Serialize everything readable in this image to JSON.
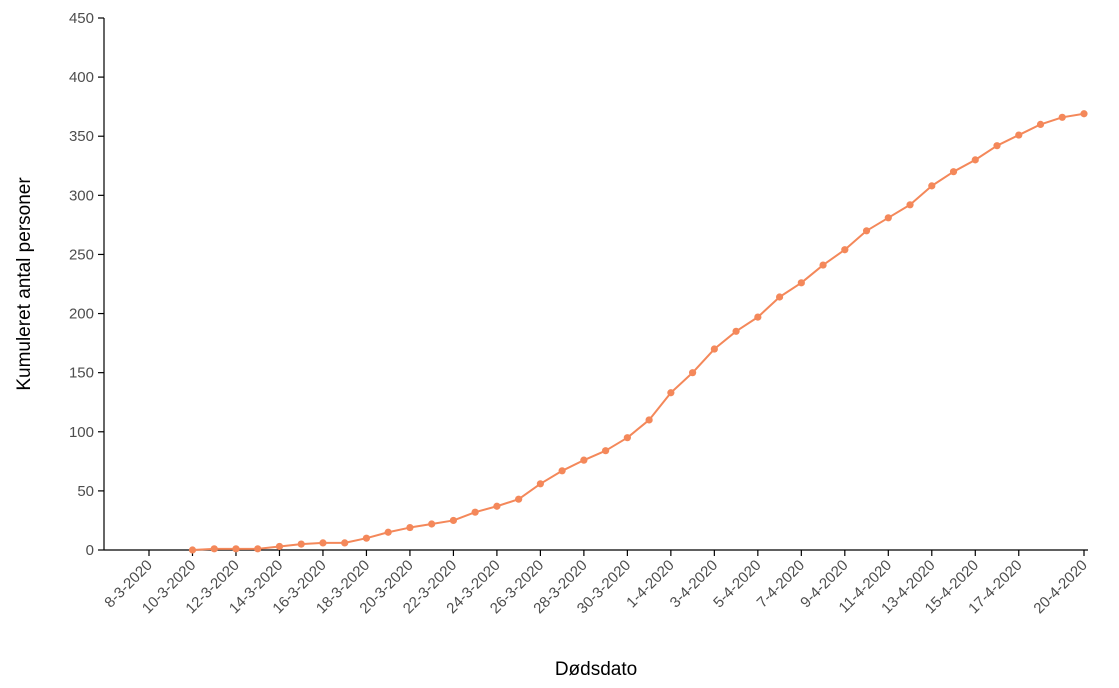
{
  "chart_data": {
    "type": "line",
    "title": "",
    "xlabel": "Dødsdato",
    "ylabel": "Kumuleret antal personer",
    "ylim": [
      0,
      450
    ],
    "y_ticks": [
      0,
      50,
      100,
      150,
      200,
      250,
      300,
      350,
      400,
      450
    ],
    "x_tick_labels": [
      "8-3-2020",
      "10-3-2020",
      "12-3-2020",
      "14-3-2020",
      "16-3-2020",
      "18-3-2020",
      "20-3-2020",
      "22-3-2020",
      "24-3-2020",
      "26-3-2020",
      "28-3-2020",
      "30-3-2020",
      "1-4-2020",
      "3-4-2020",
      "5-4-2020",
      "7-4-2020",
      "9-4-2020",
      "11-4-2020",
      "13-4-2020",
      "15-4-2020",
      "17-4-2020",
      "20-4-2020"
    ],
    "x_tick_dates": [
      "2020-03-08",
      "2020-03-10",
      "2020-03-12",
      "2020-03-14",
      "2020-03-16",
      "2020-03-18",
      "2020-03-20",
      "2020-03-22",
      "2020-03-24",
      "2020-03-26",
      "2020-03-28",
      "2020-03-30",
      "2020-04-01",
      "2020-04-03",
      "2020-04-05",
      "2020-04-07",
      "2020-04-09",
      "2020-04-11",
      "2020-04-13",
      "2020-04-15",
      "2020-04-17",
      "2020-04-20"
    ],
    "x_range": [
      "2020-03-08",
      "2020-04-20"
    ],
    "grid": false,
    "line_color": "#F4885A",
    "series": [
      {
        "x": [
          "2020-03-10",
          "2020-03-11",
          "2020-03-12",
          "2020-03-13",
          "2020-03-14",
          "2020-03-15",
          "2020-03-16",
          "2020-03-17",
          "2020-03-18",
          "2020-03-19",
          "2020-03-20",
          "2020-03-21",
          "2020-03-22",
          "2020-03-23",
          "2020-03-24",
          "2020-03-25",
          "2020-03-26",
          "2020-03-27",
          "2020-03-28",
          "2020-03-29",
          "2020-03-30",
          "2020-03-31",
          "2020-04-01",
          "2020-04-02",
          "2020-04-03",
          "2020-04-04",
          "2020-04-05",
          "2020-04-06",
          "2020-04-07",
          "2020-04-08",
          "2020-04-09",
          "2020-04-10",
          "2020-04-11",
          "2020-04-12",
          "2020-04-13",
          "2020-04-14",
          "2020-04-15",
          "2020-04-16",
          "2020-04-17",
          "2020-04-18",
          "2020-04-19",
          "2020-04-20"
        ],
        "values": [
          0,
          1,
          1,
          1,
          3,
          5,
          6,
          6,
          10,
          15,
          19,
          22,
          25,
          32,
          37,
          43,
          56,
          67,
          76,
          84,
          95,
          110,
          133,
          150,
          170,
          185,
          197,
          214,
          226,
          241,
          254,
          270,
          281,
          292,
          308,
          320,
          330,
          342,
          351,
          360,
          366,
          369
        ]
      }
    ]
  }
}
